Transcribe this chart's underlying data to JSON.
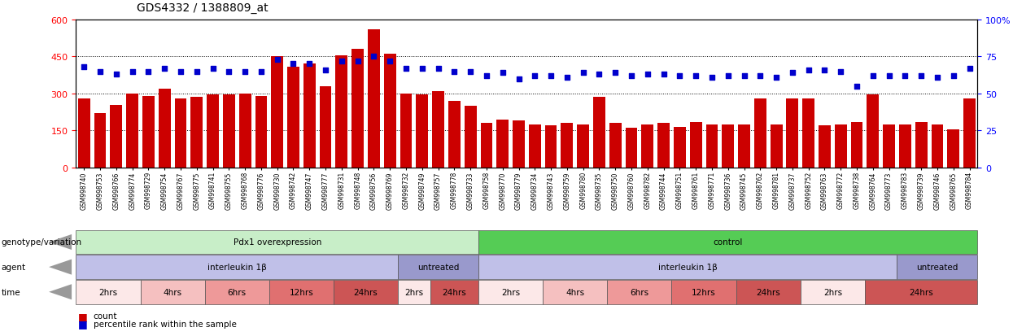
{
  "title": "GDS4332 / 1388809_at",
  "samples": [
    "GSM998740",
    "GSM998753",
    "GSM998766",
    "GSM998774",
    "GSM998729",
    "GSM998754",
    "GSM998767",
    "GSM998775",
    "GSM998741",
    "GSM998755",
    "GSM998768",
    "GSM998776",
    "GSM998730",
    "GSM998742",
    "GSM998747",
    "GSM998777",
    "GSM998731",
    "GSM998748",
    "GSM998756",
    "GSM998769",
    "GSM998732",
    "GSM998749",
    "GSM998757",
    "GSM998778",
    "GSM998733",
    "GSM998758",
    "GSM998770",
    "GSM998779",
    "GSM998734",
    "GSM998743",
    "GSM998759",
    "GSM998780",
    "GSM998735",
    "GSM998750",
    "GSM998760",
    "GSM998782",
    "GSM998744",
    "GSM998751",
    "GSM998761",
    "GSM998771",
    "GSM998736",
    "GSM998745",
    "GSM998762",
    "GSM998781",
    "GSM998737",
    "GSM998752",
    "GSM998763",
    "GSM998772",
    "GSM998738",
    "GSM998764",
    "GSM998773",
    "GSM998783",
    "GSM998739",
    "GSM998746",
    "GSM998765",
    "GSM998784"
  ],
  "bar_values": [
    280,
    220,
    255,
    300,
    290,
    320,
    280,
    285,
    295,
    295,
    300,
    290,
    450,
    410,
    420,
    330,
    455,
    480,
    560,
    460,
    300,
    295,
    310,
    270,
    250,
    180,
    195,
    190,
    175,
    170,
    180,
    175,
    285,
    180,
    160,
    175,
    180,
    165,
    185,
    175,
    175,
    175,
    280,
    175,
    280,
    280,
    170,
    175,
    185,
    295,
    175,
    175,
    185,
    175,
    155,
    280
  ],
  "percentile_values": [
    68,
    65,
    63,
    65,
    65,
    67,
    65,
    65,
    67,
    65,
    65,
    65,
    73,
    70,
    70,
    66,
    72,
    72,
    75,
    72,
    67,
    67,
    67,
    65,
    65,
    62,
    64,
    60,
    62,
    62,
    61,
    64,
    63,
    64,
    62,
    63,
    63,
    62,
    62,
    61,
    62,
    62,
    62,
    61,
    64,
    66,
    66,
    65,
    55,
    62,
    62,
    62,
    62,
    61,
    62,
    67
  ],
  "bar_color": "#cc0000",
  "dot_color": "#0000cc",
  "yticks_left": [
    0,
    150,
    300,
    450,
    600
  ],
  "yticks_right": [
    0,
    25,
    50,
    75,
    100
  ],
  "row_genotype_label": "genotype/variation",
  "row_genotype_segments": [
    {
      "text": "Pdx1 overexpression",
      "start": 0,
      "end": 25,
      "color": "#c8eec8"
    },
    {
      "text": "control",
      "start": 25,
      "end": 56,
      "color": "#55cc55"
    }
  ],
  "row_agent_label": "agent",
  "row_agent_segments": [
    {
      "text": "interleukin 1β",
      "start": 0,
      "end": 20,
      "color": "#c0c0e8"
    },
    {
      "text": "untreated",
      "start": 20,
      "end": 25,
      "color": "#9999cc"
    },
    {
      "text": "interleukin 1β",
      "start": 25,
      "end": 51,
      "color": "#c0c0e8"
    },
    {
      "text": "untreated",
      "start": 51,
      "end": 56,
      "color": "#9999cc"
    }
  ],
  "row_time_label": "time",
  "row_time_segments": [
    {
      "text": "2hrs",
      "start": 0,
      "end": 4,
      "color": "#fce8e8"
    },
    {
      "text": "4hrs",
      "start": 4,
      "end": 8,
      "color": "#f5c0c0"
    },
    {
      "text": "6hrs",
      "start": 8,
      "end": 12,
      "color": "#ee9999"
    },
    {
      "text": "12hrs",
      "start": 12,
      "end": 16,
      "color": "#e07070"
    },
    {
      "text": "24hrs",
      "start": 16,
      "end": 20,
      "color": "#cc5555"
    },
    {
      "text": "2hrs",
      "start": 20,
      "end": 22,
      "color": "#fce8e8"
    },
    {
      "text": "24hrs",
      "start": 22,
      "end": 25,
      "color": "#cc5555"
    },
    {
      "text": "2hrs",
      "start": 25,
      "end": 29,
      "color": "#fce8e8"
    },
    {
      "text": "4hrs",
      "start": 29,
      "end": 33,
      "color": "#f5c0c0"
    },
    {
      "text": "6hrs",
      "start": 33,
      "end": 37,
      "color": "#ee9999"
    },
    {
      "text": "12hrs",
      "start": 37,
      "end": 41,
      "color": "#e07070"
    },
    {
      "text": "24hrs",
      "start": 41,
      "end": 45,
      "color": "#cc5555"
    },
    {
      "text": "2hrs",
      "start": 45,
      "end": 49,
      "color": "#fce8e8"
    },
    {
      "text": "24hrs",
      "start": 49,
      "end": 56,
      "color": "#cc5555"
    }
  ],
  "legend_count_label": "count",
  "legend_pct_label": "percentile rank within the sample"
}
